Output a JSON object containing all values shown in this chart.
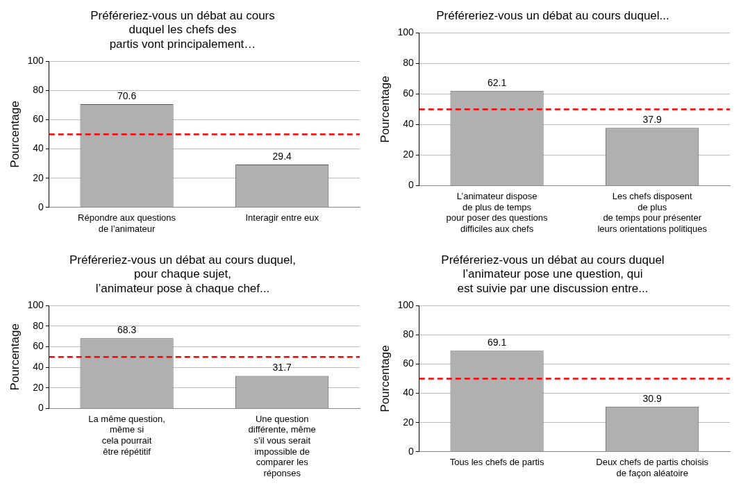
{
  "chart_data": [
    {
      "type": "bar",
      "title": "Préféreriez-vous un débat au cours\nduquel les chefs des\npartis vont principalement…",
      "ylabel": "Pourcentage",
      "categories": [
        "Répondre aux questions\nde l’animateur",
        "Interagir entre eux"
      ],
      "values": [
        70.6,
        29.4
      ],
      "color": "#b0b0b0",
      "ylim": [
        0,
        100
      ],
      "yticks": [
        0,
        20,
        40,
        60,
        80,
        100
      ],
      "grid": "y",
      "data_labels": true,
      "ref_lines": [
        {
          "axis": "y",
          "value": 50,
          "color": "#ff0000",
          "line_style": "dashed"
        }
      ]
    },
    {
      "type": "bar",
      "title": "Préféreriez-vous un débat au cours duquel...",
      "ylabel": "Pourcentage",
      "categories": [
        "L’animateur dispose\nde plus de temps\npour poser des questions\ndifficiles aux chefs",
        "Les chefs disposent\nde plus\nde temps pour présenter\nleurs orientations politiques"
      ],
      "values": [
        62.1,
        37.9
      ],
      "color": "#b0b0b0",
      "ylim": [
        0,
        100
      ],
      "yticks": [
        0,
        20,
        40,
        60,
        80,
        100
      ],
      "grid": "y",
      "data_labels": true,
      "ref_lines": [
        {
          "axis": "y",
          "value": 50,
          "color": "#ff0000",
          "line_style": "dashed"
        }
      ]
    },
    {
      "type": "bar",
      "title": "Préféreriez-vous un débat au cours duquel,\npour chaque sujet,\nl’animateur pose à chaque chef...",
      "ylabel": "Pourcentage",
      "categories": [
        "La même question,\nmême si\ncela pourrait\nêtre répétitif",
        "Une question\ndifférente, même\ns’il vous serait\nimpossible de\ncomparer les\nréponses"
      ],
      "values": [
        68.3,
        31.7
      ],
      "color": "#b0b0b0",
      "ylim": [
        0,
        100
      ],
      "yticks": [
        0,
        20,
        40,
        60,
        80,
        100
      ],
      "grid": "y",
      "data_labels": true,
      "ref_lines": [
        {
          "axis": "y",
          "value": 50,
          "color": "#ff0000",
          "line_style": "dashed"
        }
      ]
    },
    {
      "type": "bar",
      "title": "Préféreriez-vous un débat au cours duquel\nl’animateur pose une question, qui\nest suivie par une discussion entre...",
      "ylabel": "Pourcentage",
      "categories": [
        "Tous les chefs de partis",
        "Deux chefs de partis choisis\nde façon aléatoire"
      ],
      "values": [
        69.1,
        30.9
      ],
      "color": "#b0b0b0",
      "ylim": [
        0,
        100
      ],
      "yticks": [
        0,
        20,
        40,
        60,
        80,
        100
      ],
      "grid": "y",
      "data_labels": true,
      "ref_lines": [
        {
          "axis": "y",
          "value": 50,
          "color": "#ff0000",
          "line_style": "dashed"
        }
      ]
    }
  ]
}
